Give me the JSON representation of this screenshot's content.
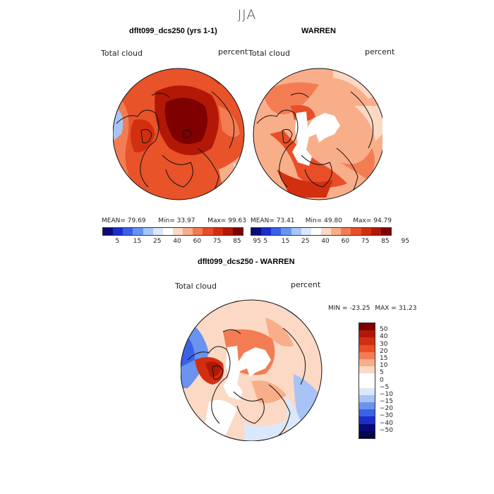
{
  "figure": {
    "season": "JJA"
  },
  "panels": [
    {
      "title": "dflt099_dcs250 (yrs 1-1)",
      "variable": "Total cloud",
      "units": "percent",
      "stats": {
        "mean_label": "MEAN=",
        "mean": "79.69",
        "min_label": "Min=",
        "min": "33.97",
        "max_label": "Max=",
        "max": "99.63"
      },
      "colorbar": {
        "ticks": [
          "5",
          "15",
          "25",
          "40",
          "60",
          "75",
          "85",
          "95"
        ],
        "colors": [
          "#0a0a7a",
          "#1a2fc9",
          "#3a62e6",
          "#6a93f0",
          "#a8c4f6",
          "#dbe8fb",
          "#ffffff",
          "#fcd9c4",
          "#f9ae8a",
          "#f47c53",
          "#e84e27",
          "#d22f10",
          "#b21805",
          "#7e0000"
        ]
      }
    },
    {
      "title": "WARREN",
      "variable": "Total cloud",
      "units": "percent",
      "stats": {
        "mean_label": "MEAN=",
        "mean": "73.41",
        "min_label": "Min=",
        "min": "49.80",
        "max_label": "Max=",
        "max": "94.79"
      },
      "colorbar": {
        "ticks": [
          "5",
          "15",
          "25",
          "40",
          "60",
          "75",
          "85",
          "95"
        ],
        "colors": [
          "#0a0a7a",
          "#1a2fc9",
          "#3a62e6",
          "#6a93f0",
          "#a8c4f6",
          "#dbe8fb",
          "#ffffff",
          "#fcd9c4",
          "#f9ae8a",
          "#f47c53",
          "#e84e27",
          "#d22f10",
          "#b21805",
          "#7e0000"
        ]
      }
    },
    {
      "title": "dflt099_dcs250 - WARREN",
      "variable": "Total cloud",
      "units": "percent",
      "stats": {
        "min_label": "MIN =",
        "min": "-23.25",
        "max_label": "MAX =",
        "max": "31.23"
      },
      "colorbar": {
        "ticks": [
          "50",
          "40",
          "30",
          "20",
          "15",
          "10",
          "5",
          "0",
          "−5",
          "−10",
          "−15",
          "−20",
          "−30",
          "−40",
          "−50"
        ],
        "colors": [
          "#7e0000",
          "#b21805",
          "#d22f10",
          "#e84e27",
          "#f47c53",
          "#f9ae8a",
          "#fcd9c4",
          "#ffffff",
          "#ffffff",
          "#dbe8fb",
          "#a8c4f6",
          "#6a93f0",
          "#3a62e6",
          "#1a2fc9",
          "#0a0a7a",
          "#050550"
        ]
      }
    }
  ]
}
